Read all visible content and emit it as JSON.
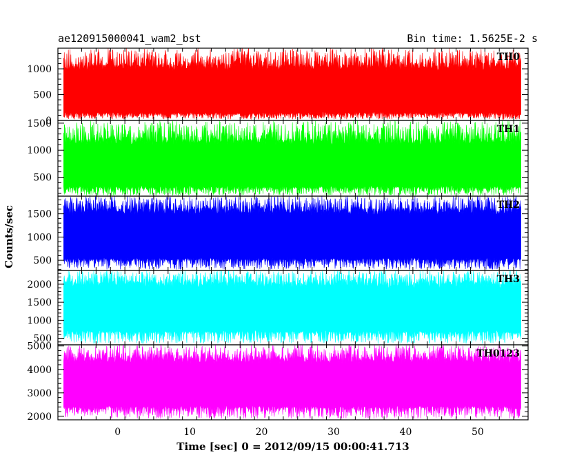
{
  "chart_data": {
    "type": "line",
    "title": "ae120915000041_wam2_bst",
    "subtitle": "Bin time: 1.5625E-2 s",
    "xlabel": "Time [sec] 0 = 2012/09/15 00:00:41.713",
    "ylabel": "Counts/sec",
    "xlim": [
      -8.3,
      57.0
    ],
    "x_data_range": [
      -7.5,
      56.0
    ],
    "x_ticks": [
      0,
      10,
      20,
      30,
      40,
      50
    ],
    "x_tick_labels": [
      "0",
      "10",
      "20",
      "30",
      "40",
      "50"
    ],
    "grid": false,
    "panels": [
      {
        "name": "TH0",
        "color": "#ff0000",
        "ylim": [
          0,
          1400
        ],
        "y_ticks": [
          0,
          500,
          1000
        ],
        "y_tick_labels": [
          "0",
          "500",
          "1000"
        ],
        "typical_low": 120,
        "typical_high": 1080,
        "peak_max": 1400,
        "trough_min": 20
      },
      {
        "name": "TH1",
        "color": "#00ff00",
        "ylim": [
          150,
          1550
        ],
        "y_ticks": [
          500,
          1000,
          1500
        ],
        "y_tick_labels": [
          "500",
          "1000",
          "1500"
        ],
        "typical_low": 300,
        "typical_high": 1200,
        "peak_max": 1550,
        "trough_min": 160
      },
      {
        "name": "TH2",
        "color": "#0000ff",
        "ylim": [
          280,
          1880
        ],
        "y_ticks": [
          500,
          1000,
          1500
        ],
        "y_tick_labels": [
          "500",
          "1000",
          "1500"
        ],
        "typical_low": 500,
        "typical_high": 1600,
        "peak_max": 1880,
        "trough_min": 300
      },
      {
        "name": "TH3",
        "color": "#00ffff",
        "ylim": [
          320,
          2380
        ],
        "y_ticks": [
          500,
          1000,
          1500,
          2000
        ],
        "y_tick_labels": [
          "500",
          "1000",
          "1500",
          "2000"
        ],
        "typical_low": 650,
        "typical_high": 2050,
        "peak_max": 2380,
        "trough_min": 350
      },
      {
        "name": "TH0123",
        "color": "#ff00ff",
        "ylim": [
          1850,
          5050
        ],
        "y_ticks": [
          2000,
          3000,
          4000,
          5000
        ],
        "y_tick_labels": [
          "2000",
          "3000",
          "4000",
          "5000"
        ],
        "typical_low": 2350,
        "typical_high": 4500,
        "peak_max": 5050,
        "trough_min": 1900
      }
    ]
  }
}
